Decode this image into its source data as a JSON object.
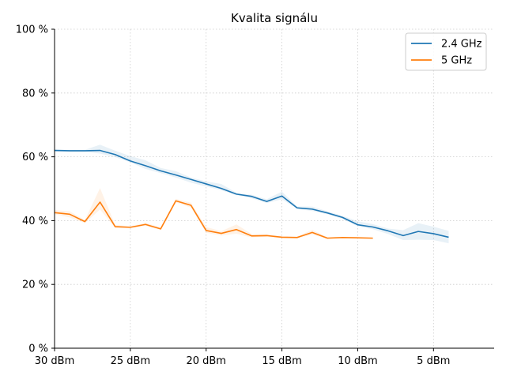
{
  "chart_data": {
    "type": "line",
    "title": "Kvalita signálu",
    "xlabel": "",
    "ylabel": "",
    "x_reversed": true,
    "xlim": [
      30,
      1
    ],
    "ylim": [
      0,
      100
    ],
    "x_ticks": [
      30,
      25,
      20,
      15,
      10,
      5
    ],
    "x_tick_labels": [
      "30 dBm",
      "25 dBm",
      "20 dBm",
      "15 dBm",
      "10 dBm",
      "5 dBm"
    ],
    "y_ticks": [
      0,
      20,
      40,
      60,
      80,
      100
    ],
    "y_tick_labels": [
      "0 %",
      "20 %",
      "40 %",
      "60 %",
      "80 %",
      "100 %"
    ],
    "grid": true,
    "legend_position": "top-right",
    "series": [
      {
        "name": "2.4 GHz",
        "color": "#1f77b4",
        "x": [
          30,
          29,
          28,
          27,
          26,
          25,
          24,
          23,
          22,
          21,
          20,
          19,
          18,
          17,
          16,
          15,
          14,
          13,
          12,
          11,
          10,
          9,
          8,
          7,
          6,
          5,
          4
        ],
        "y": [
          62.0,
          61.9,
          61.9,
          62.0,
          60.7,
          58.7,
          57.2,
          55.6,
          54.3,
          52.9,
          51.5,
          50.1,
          48.3,
          47.6,
          46.0,
          47.7,
          44.0,
          43.6,
          42.4,
          41.0,
          38.7,
          38.0,
          36.8,
          35.3,
          36.6,
          35.9,
          34.8
        ],
        "band_low": [
          61.7,
          61.6,
          61.6,
          61.0,
          59.9,
          58.3,
          56.2,
          54.9,
          53.5,
          51.9,
          50.7,
          49.5,
          48.0,
          47.0,
          45.5,
          46.7,
          43.7,
          43.0,
          42.0,
          40.5,
          38.2,
          37.3,
          35.8,
          33.9,
          34.0,
          33.9,
          32.9
        ],
        "band_high": [
          62.3,
          62.2,
          62.2,
          63.8,
          61.9,
          60.2,
          58.9,
          56.5,
          55.5,
          53.5,
          52.3,
          51.5,
          48.7,
          48.1,
          46.7,
          49.1,
          44.4,
          44.4,
          42.9,
          41.5,
          39.8,
          38.9,
          37.5,
          37.0,
          39.2,
          38.1,
          36.8
        ]
      },
      {
        "name": "5 GHz",
        "color": "#ff7f0e",
        "x": [
          30,
          29,
          28,
          27,
          26,
          25,
          24,
          23,
          22,
          21,
          20,
          19,
          18,
          17,
          16,
          15,
          14,
          13,
          12,
          11,
          10,
          9
        ],
        "y": [
          42.5,
          42.0,
          39.7,
          45.8,
          38.1,
          37.9,
          38.8,
          37.4,
          46.2,
          44.8,
          36.9,
          36.0,
          37.2,
          35.2,
          35.3,
          34.8,
          34.7,
          36.3,
          34.5,
          34.7,
          34.6,
          34.5
        ],
        "band_low": [
          42.0,
          41.0,
          39.2,
          43.5,
          37.7,
          37.7,
          38.3,
          37.1,
          45.7,
          44.1,
          36.2,
          35.3,
          35.9,
          34.7,
          34.9,
          34.5,
          34.5,
          35.6,
          34.3,
          34.6,
          34.5,
          34.4
        ],
        "band_high": [
          43.3,
          42.9,
          40.2,
          50.2,
          38.6,
          38.2,
          39.4,
          37.8,
          46.8,
          45.6,
          38.0,
          36.7,
          38.8,
          35.8,
          35.8,
          35.1,
          35.0,
          37.1,
          34.8,
          34.9,
          34.8,
          34.6
        ]
      }
    ]
  }
}
